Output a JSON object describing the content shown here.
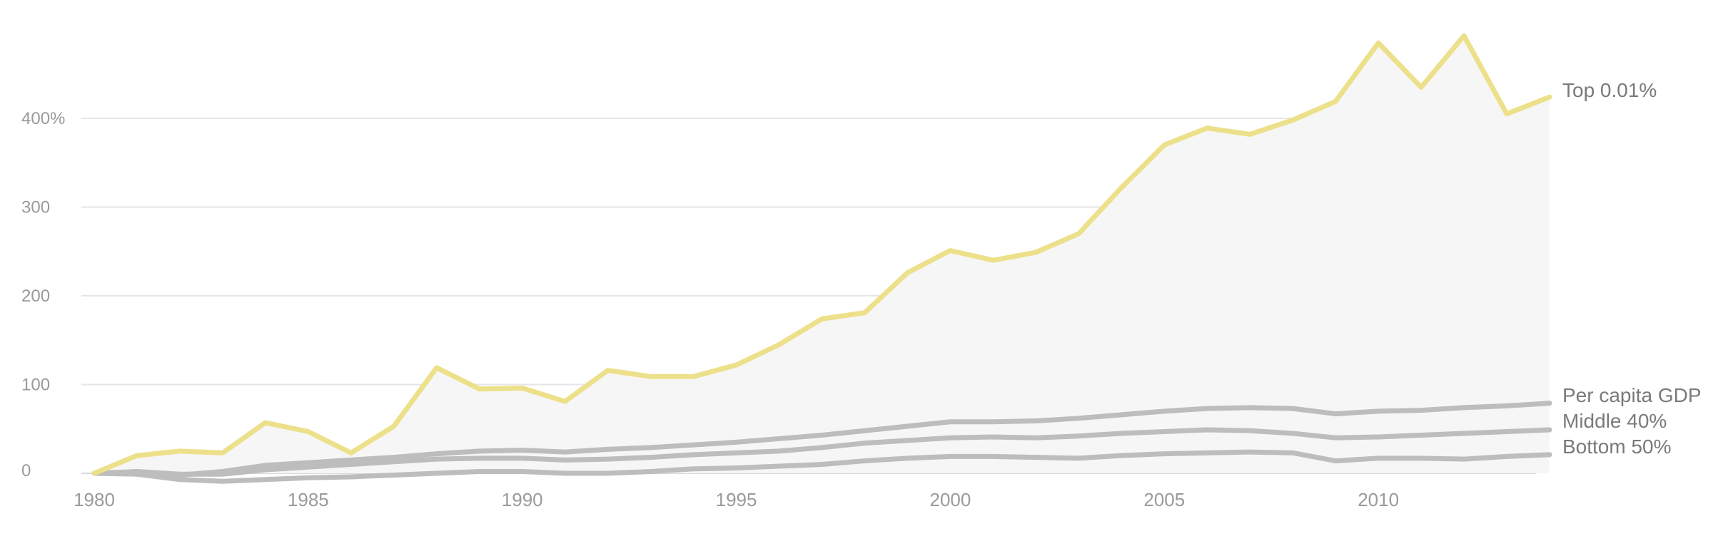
{
  "chart_data": {
    "type": "line",
    "x": [
      1980,
      1981,
      1982,
      1983,
      1984,
      1985,
      1986,
      1987,
      1988,
      1989,
      1990,
      1991,
      1992,
      1993,
      1994,
      1995,
      1996,
      1997,
      1998,
      1999,
      2000,
      2001,
      2002,
      2003,
      2004,
      2005,
      2006,
      2007,
      2008,
      2009,
      2010,
      2011,
      2012,
      2013,
      2014
    ],
    "series": [
      {
        "name": "Top 0.01%",
        "color": "#ede08a",
        "values": [
          0,
          20,
          25,
          23,
          57,
          47,
          23,
          53,
          119,
          95,
          96,
          81,
          116,
          109,
          109,
          122,
          145,
          174,
          181,
          226,
          251,
          240,
          249,
          270,
          322,
          370,
          389,
          382,
          398,
          419,
          485,
          435,
          493,
          405,
          424
        ]
      },
      {
        "name": "Per capita GDP",
        "color": "#bdbdbd",
        "values": [
          0,
          1,
          -2,
          2,
          9,
          12,
          15,
          18,
          22,
          25,
          26,
          24,
          27,
          29,
          32,
          35,
          39,
          43,
          48,
          53,
          58,
          58,
          59,
          62,
          66,
          70,
          73,
          74,
          73,
          67,
          70,
          71,
          74,
          76,
          79
        ]
      },
      {
        "name": "Middle 40%",
        "color": "#bdbdbd",
        "values": [
          0,
          2,
          -1,
          -1,
          4,
          7,
          10,
          13,
          16,
          17,
          17,
          15,
          16,
          18,
          21,
          23,
          25,
          29,
          34,
          37,
          40,
          41,
          40,
          42,
          45,
          47,
          49,
          48,
          45,
          40,
          41,
          43,
          45,
          47,
          49
        ]
      },
      {
        "name": "Bottom 50%",
        "color": "#bdbdbd",
        "values": [
          0,
          -1,
          -7,
          -9,
          -7,
          -5,
          -4,
          -2,
          0,
          2,
          2,
          0,
          0,
          2,
          5,
          6,
          8,
          10,
          14,
          17,
          19,
          19,
          18,
          17,
          20,
          22,
          23,
          24,
          23,
          14,
          17,
          17,
          16,
          19,
          21
        ]
      }
    ],
    "y_ticks": [
      0,
      100,
      200,
      300,
      400
    ],
    "y_tick_labels": [
      "0",
      "100",
      "200",
      "300",
      "400%"
    ],
    "x_ticks": [
      1980,
      1985,
      1990,
      1995,
      2000,
      2005,
      2010
    ],
    "x_tick_labels": [
      "1980",
      "1985",
      "1990",
      "1995",
      "2000",
      "2005",
      "2010"
    ],
    "xlim": [
      1980,
      2014
    ],
    "ylim": [
      -10,
      500
    ],
    "grid": "horizontal",
    "legend": "right-end line labels"
  }
}
